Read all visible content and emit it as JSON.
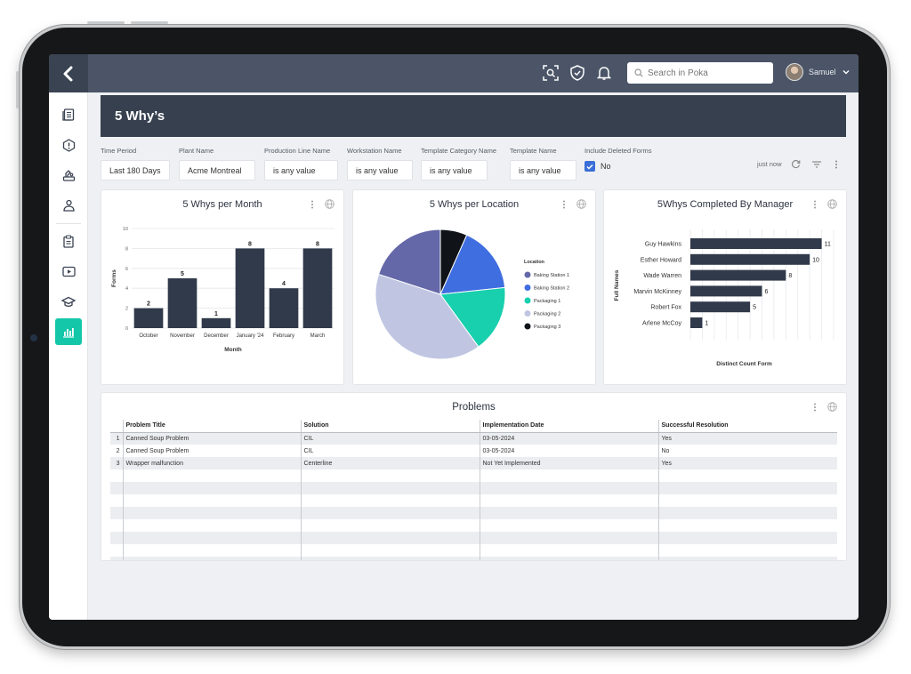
{
  "app": {
    "page_title": "5 Why’s",
    "search_placeholder": "Search in Poka",
    "user_name": "Samuel"
  },
  "sidebar": {
    "items": [
      {
        "icon": "document-icon"
      },
      {
        "icon": "alert-icon"
      },
      {
        "icon": "machine-icon"
      },
      {
        "icon": "people-icon"
      },
      {
        "icon": "clipboard-icon"
      },
      {
        "icon": "video-icon"
      },
      {
        "icon": "graduation-cap-icon"
      },
      {
        "icon": "analytics-icon",
        "active": true
      }
    ]
  },
  "filters": [
    {
      "label": "Time Period",
      "value": "Last 180 Days"
    },
    {
      "label": "Plant Name",
      "value": "Acme Montreal"
    },
    {
      "label": "Production Line Name",
      "value": "is any value"
    },
    {
      "label": "Workstation Name",
      "value": "is any value"
    },
    {
      "label": "Template Category Name",
      "value": "is any value"
    },
    {
      "label": "Template Name",
      "value": "is any value"
    }
  ],
  "include_deleted": {
    "label": "Include Deleted Forms",
    "value": "No"
  },
  "refresh": {
    "label": "just now"
  },
  "charts": {
    "monthly": {
      "title": "5 Whys per Month"
    },
    "location": {
      "title": "5 Whys per Location"
    },
    "manager": {
      "title": "5Whys Completed By Manager"
    }
  },
  "chart_data": [
    {
      "type": "bar",
      "title": "5 Whys per Month",
      "categories": [
        "October",
        "November",
        "December",
        "January '24",
        "February",
        "March"
      ],
      "values": [
        2,
        5,
        1,
        8,
        4,
        8
      ],
      "xlabel": "Month",
      "ylabel": "Forms",
      "ylim": [
        0,
        10
      ],
      "yticks": [
        0,
        2,
        4,
        6,
        8,
        10
      ],
      "color": "#313a4a"
    },
    {
      "type": "pie",
      "title": "5 Whys per Location",
      "legend_title": "Location",
      "legend_position": "right",
      "labels": [
        "Baking Station 1",
        "Baking Station 2",
        "Packaging 1",
        "Packaging 2",
        "Packaging 3"
      ],
      "values": [
        6,
        5,
        5,
        12,
        2
      ],
      "colors": [
        "#6468a8",
        "#3f6ee0",
        "#18cfae",
        "#c0c6e2",
        "#101418"
      ]
    },
    {
      "type": "bar",
      "orientation": "horizontal",
      "title": "5Whys Completed By Manager",
      "categories": [
        "Guy Hawkins",
        "Esther Howard",
        "Wade Warren",
        "Marvin McKinney",
        "Robert Fox",
        "Arlene McCoy"
      ],
      "values": [
        11,
        10,
        8,
        6,
        5,
        1
      ],
      "xlabel": "Distinct Count Form",
      "ylabel": "Full Names",
      "xlim": [
        0,
        12
      ],
      "color": "#313a4a"
    }
  ],
  "problems": {
    "title": "Problems",
    "columns": [
      "Problem Title",
      "Solution",
      "Implementation Date",
      "Successful Resolution"
    ],
    "rows": [
      {
        "index": "1",
        "cells": [
          "Canned Soup Problem",
          "CIL",
          "03-05-2024",
          "Yes"
        ]
      },
      {
        "index": "2",
        "cells": [
          "Canned Soup Problem",
          "CIL",
          "03-05-2024",
          "No"
        ]
      },
      {
        "index": "3",
        "cells": [
          "Wrapper malfunction",
          "Centerline",
          "Not Yet Implemented",
          "Yes"
        ]
      }
    ]
  }
}
